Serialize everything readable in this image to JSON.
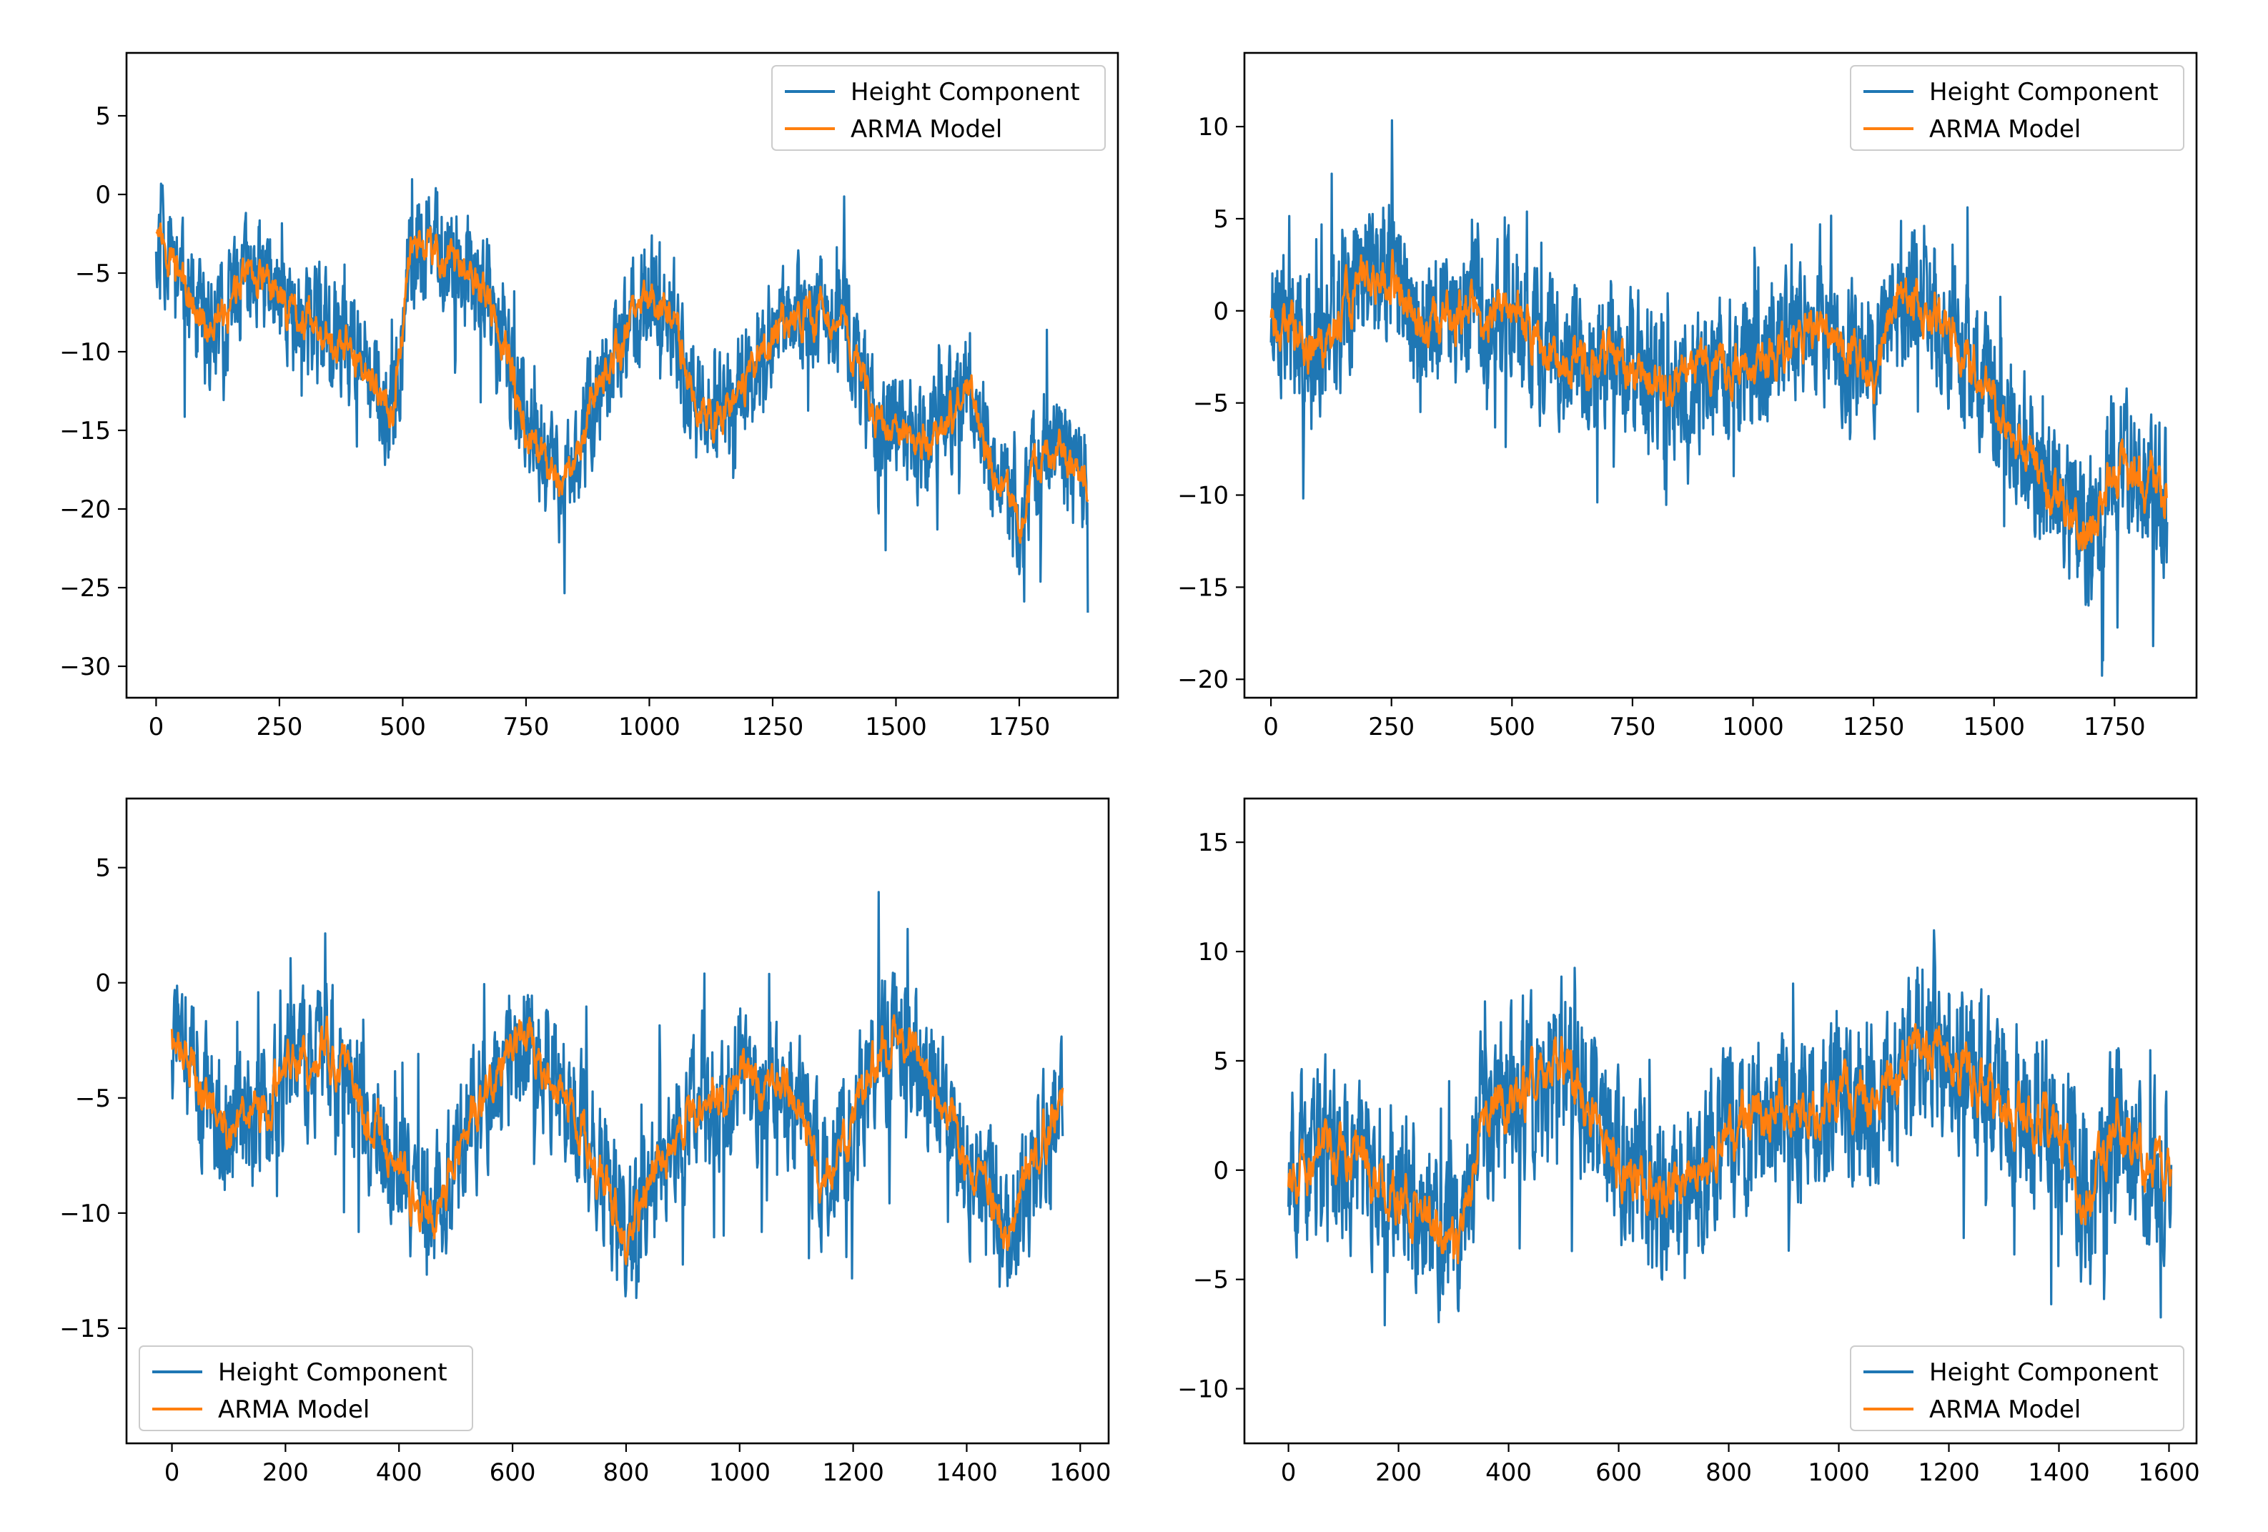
{
  "chart_data": [
    {
      "type": "line",
      "title": "",
      "xlabel": "",
      "ylabel": "",
      "xlim": [
        -60,
        1950
      ],
      "ylim": [
        -32,
        9
      ],
      "xticks": [
        0,
        250,
        500,
        750,
        1000,
        1250,
        1500,
        1750
      ],
      "yticks": [
        5,
        0,
        -5,
        -10,
        -15,
        -20,
        -25,
        -30
      ],
      "legend_position": "upper right",
      "n_points": 1890,
      "series": [
        {
          "name": "Height Component",
          "color": "#1f77b4",
          "noise_amplitude": 4.2,
          "trend": {
            "x": [
              0,
              100,
              200,
              300,
              400,
              480,
              520,
              600,
              680,
              750,
              820,
              900,
              1000,
              1050,
              1100,
              1150,
              1250,
              1350,
              1400,
              1450,
              1550,
              1650,
              1700,
              1750,
              1800,
              1890
            ],
            "y": [
              -2,
              -9,
              -5,
              -8,
              -10,
              -14,
              -3,
              -4,
              -7,
              -15,
              -19,
              -12,
              -6,
              -8,
              -14,
              -14,
              -9,
              -7,
              -8,
              -14,
              -16,
              -12,
              -18,
              -21,
              -16,
              -18
            ]
          }
        },
        {
          "name": "ARMA Model",
          "color": "#ff7f0e",
          "noise_amplitude": 1.6,
          "trend": {
            "x": [
              0,
              100,
              200,
              300,
              400,
              480,
              520,
              600,
              680,
              750,
              820,
              900,
              1000,
              1050,
              1100,
              1150,
              1250,
              1350,
              1400,
              1450,
              1550,
              1650,
              1700,
              1750,
              1800,
              1890
            ],
            "y": [
              -2,
              -9,
              -5,
              -8,
              -10,
              -14,
              -3,
              -4,
              -7,
              -15,
              -19,
              -12,
              -6,
              -8,
              -14,
              -14,
              -9,
              -7,
              -8,
              -14,
              -16,
              -12,
              -18,
              -21,
              -16,
              -18
            ]
          }
        }
      ]
    },
    {
      "type": "line",
      "title": "",
      "xlabel": "",
      "ylabel": "",
      "xlim": [
        -55,
        1920
      ],
      "ylim": [
        -21,
        14
      ],
      "xticks": [
        0,
        250,
        500,
        750,
        1000,
        1250,
        1500,
        1750
      ],
      "yticks": [
        10,
        5,
        0,
        -5,
        -10,
        -15,
        -20
      ],
      "legend_position": "upper right",
      "n_points": 1860,
      "series": [
        {
          "name": "Height Component",
          "color": "#1f77b4",
          "noise_amplitude": 4.5,
          "trend": {
            "x": [
              0,
              100,
              200,
              250,
              300,
              400,
              500,
              600,
              700,
              800,
              900,
              1000,
              1100,
              1200,
              1250,
              1300,
              1400,
              1500,
              1550,
              1650,
              1700,
              1750,
              1850
            ],
            "y": [
              0,
              -2,
              2,
              2,
              -1,
              0,
              0,
              -3,
              -2,
              -4,
              -3,
              -3,
              -1,
              -2,
              -3,
              1,
              -1,
              -5,
              -7,
              -11,
              -12,
              -8,
              -10
            ]
          }
        },
        {
          "name": "ARMA Model",
          "color": "#ff7f0e",
          "noise_amplitude": 1.7,
          "trend": {
            "x": [
              0,
              100,
              200,
              250,
              300,
              400,
              500,
              600,
              700,
              800,
              900,
              1000,
              1100,
              1200,
              1250,
              1300,
              1400,
              1500,
              1550,
              1650,
              1700,
              1750,
              1850
            ],
            "y": [
              0,
              -2,
              2,
              2,
              -1,
              0,
              0,
              -3,
              -2,
              -4,
              -3,
              -3,
              -1,
              -2,
              -3,
              1,
              -1,
              -5,
              -7,
              -11,
              -12,
              -8,
              -10
            ]
          }
        }
      ]
    },
    {
      "type": "line",
      "title": "",
      "xlabel": "",
      "ylabel": "",
      "xlim": [
        -80,
        1650
      ],
      "ylim": [
        -20,
        8
      ],
      "xticks": [
        0,
        200,
        400,
        600,
        800,
        1000,
        1200,
        1400,
        1600
      ],
      "yticks": [
        5,
        0,
        -5,
        -10,
        -15
      ],
      "legend_position": "lower left",
      "n_points": 1570,
      "series": [
        {
          "name": "Height Component",
          "color": "#1f77b4",
          "noise_amplitude": 3.6,
          "trend": {
            "x": [
              0,
              100,
              200,
              270,
              350,
              450,
              550,
              620,
              700,
              800,
              900,
              1000,
              1100,
              1150,
              1250,
              1300,
              1400,
              1470,
              1570
            ],
            "y": [
              -2,
              -7,
              -4,
              -3,
              -6,
              -10,
              -5,
              -2,
              -5,
              -11,
              -6,
              -4,
              -5,
              -9,
              -3,
              -2,
              -8,
              -11,
              -5
            ]
          }
        },
        {
          "name": "ARMA Model",
          "color": "#ff7f0e",
          "noise_amplitude": 1.4,
          "trend": {
            "x": [
              0,
              100,
              200,
              270,
              350,
              450,
              550,
              620,
              700,
              800,
              900,
              1000,
              1100,
              1150,
              1250,
              1300,
              1400,
              1470,
              1570
            ],
            "y": [
              -2,
              -7,
              -4,
              -3,
              -6,
              -10,
              -5,
              -2,
              -5,
              -11,
              -6,
              -4,
              -5,
              -9,
              -3,
              -2,
              -8,
              -11,
              -5
            ]
          }
        }
      ]
    },
    {
      "type": "line",
      "title": "",
      "xlabel": "",
      "ylabel": "",
      "xlim": [
        -80,
        1650
      ],
      "ylim": [
        -12.5,
        17
      ],
      "xticks": [
        0,
        200,
        400,
        600,
        800,
        1000,
        1200,
        1400,
        1600
      ],
      "yticks": [
        15,
        10,
        5,
        0,
        -5,
        -10
      ],
      "legend_position": "lower right",
      "n_points": 1605,
      "series": [
        {
          "name": "Height Component",
          "color": "#1f77b4",
          "noise_amplitude": 4.6,
          "trend": {
            "x": [
              0,
              100,
              200,
              300,
              350,
              450,
              500,
              600,
              700,
              800,
              900,
              1000,
              1100,
              1150,
              1250,
              1300,
              1400,
              1450,
              1500,
              1605
            ],
            "y": [
              0,
              1,
              -1,
              -4,
              2,
              4,
              5,
              0,
              -1,
              2,
              3,
              3,
              4,
              6,
              4,
              3,
              2,
              -2,
              2,
              0
            ]
          }
        },
        {
          "name": "ARMA Model",
          "color": "#ff7f0e",
          "noise_amplitude": 1.7,
          "trend": {
            "x": [
              0,
              100,
              200,
              300,
              350,
              450,
              500,
              600,
              700,
              800,
              900,
              1000,
              1100,
              1150,
              1250,
              1300,
              1400,
              1450,
              1500,
              1605
            ],
            "y": [
              0,
              1,
              -1,
              -4,
              2,
              4,
              5,
              0,
              -1,
              2,
              3,
              3,
              4,
              6,
              4,
              3,
              2,
              -2,
              2,
              0
            ]
          }
        }
      ]
    }
  ]
}
